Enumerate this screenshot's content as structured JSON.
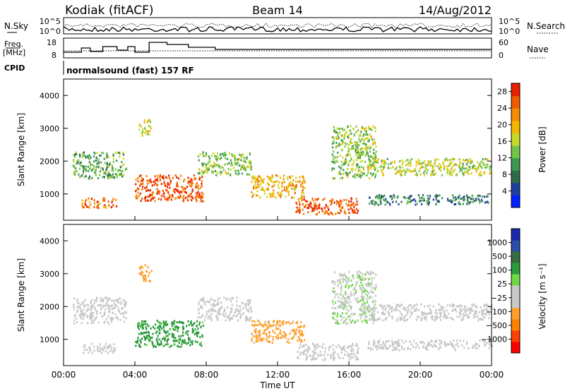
{
  "header": {
    "station": "Kodiak (fitACF)",
    "beam": "Beam 14",
    "date": "14/Aug/2012"
  },
  "top_panels": {
    "nsky_label": "N.Sky",
    "nsearch_label": "N.Search",
    "noise_ticks_left": [
      "10^5",
      "10^0"
    ],
    "noise_ticks_right": [
      "10^5",
      "10^0"
    ],
    "freq_label_1": "Freq.",
    "freq_label_2": "[MHz]",
    "freq_ticks": [
      "18",
      "8"
    ],
    "nave_label": "Nave",
    "nave_ticks": [
      "60",
      "0"
    ],
    "cpid_label": "CPID",
    "cpid_text": "normalsound (fast) 157 RF"
  },
  "colors": {
    "power_scale": [
      "#0020ff",
      "#1e3fa0",
      "#2e6b4a",
      "#3c9a50",
      "#72c34a",
      "#c8d828",
      "#f4b800",
      "#f68a00",
      "#f25a00",
      "#e82000"
    ],
    "velocity_scale": [
      "#ff0000",
      "#ff4000",
      "#ff8000",
      "#ff9f2a",
      "#c8c8c8",
      "#c8c8c8",
      "#6fd848",
      "#2a9a3a",
      "#356e3e",
      "#2a4fa8",
      "#1a2ab0"
    ]
  },
  "chart_data": [
    {
      "type": "heatmap",
      "panel": "power",
      "ylabel": "Slant Range [km]",
      "y_ticks": [
        "1000",
        "2000",
        "3000",
        "4000"
      ],
      "ylim": [
        200,
        4500
      ],
      "colorbar_label": "Power [dB]",
      "colorbar_ticks": [
        "4",
        "8",
        "12",
        "16",
        "20",
        "24",
        "28"
      ],
      "clim": [
        0,
        30
      ],
      "echo_regions": [
        {
          "t0": 0.5,
          "t1": 3.5,
          "r0": 1500,
          "r1": 2300,
          "value": 12
        },
        {
          "t0": 1.0,
          "t1": 3.0,
          "r0": 600,
          "r1": 900,
          "value": 24
        },
        {
          "t0": 4.0,
          "t1": 7.8,
          "r0": 800,
          "r1": 1600,
          "value": 26
        },
        {
          "t0": 4.2,
          "t1": 4.9,
          "r0": 2800,
          "r1": 3300,
          "value": 16
        },
        {
          "t0": 7.5,
          "t1": 10.5,
          "r0": 1600,
          "r1": 2300,
          "value": 14
        },
        {
          "t0": 10.5,
          "t1": 13.5,
          "r0": 900,
          "r1": 1600,
          "value": 20
        },
        {
          "t0": 13.0,
          "t1": 16.5,
          "r0": 400,
          "r1": 900,
          "value": 26
        },
        {
          "t0": 15.0,
          "t1": 17.5,
          "r0": 1500,
          "r1": 3100,
          "value": 14
        },
        {
          "t0": 17.0,
          "t1": 24.0,
          "r0": 1600,
          "r1": 2100,
          "value": 16
        },
        {
          "t0": 17.0,
          "t1": 24.0,
          "r0": 700,
          "r1": 1000,
          "value": 8
        }
      ]
    },
    {
      "type": "heatmap",
      "panel": "velocity",
      "ylabel": "Slant Range [km]",
      "y_ticks": [
        "1000",
        "2000",
        "3000",
        "4000"
      ],
      "ylim": [
        200,
        4500
      ],
      "colorbar_label": "Velocity [m s⁻¹]",
      "colorbar_ticks": [
        "1000",
        "500",
        "100",
        "25",
        "−25",
        "−100",
        "−500",
        "−1000"
      ],
      "clim": [
        -1000,
        1000
      ],
      "xlabel": "Time UT",
      "x_ticks": [
        "00:00",
        "04:00",
        "08:00",
        "12:00",
        "16:00",
        "20:00",
        "00:00"
      ],
      "xlim_hours": [
        0,
        24
      ],
      "echo_regions": [
        {
          "t0": 0.5,
          "t1": 3.5,
          "r0": 1500,
          "r1": 2300,
          "value": 0
        },
        {
          "t0": 1.0,
          "t1": 3.0,
          "r0": 600,
          "r1": 900,
          "value": 0
        },
        {
          "t0": 4.0,
          "t1": 7.8,
          "r0": 800,
          "r1": 1600,
          "value": 300
        },
        {
          "t0": 4.2,
          "t1": 4.9,
          "r0": 2800,
          "r1": 3300,
          "value": -300
        },
        {
          "t0": 7.5,
          "t1": 10.5,
          "r0": 1600,
          "r1": 2300,
          "value": -5
        },
        {
          "t0": 10.5,
          "t1": 13.5,
          "r0": 900,
          "r1": 1600,
          "value": -300
        },
        {
          "t0": 13.0,
          "t1": 16.5,
          "r0": 400,
          "r1": 900,
          "value": 0
        },
        {
          "t0": 15.0,
          "t1": 17.5,
          "r0": 1500,
          "r1": 3100,
          "value": 80
        },
        {
          "t0": 17.0,
          "t1": 24.0,
          "r0": 1600,
          "r1": 2100,
          "value": 0
        },
        {
          "t0": 17.0,
          "t1": 24.0,
          "r0": 700,
          "r1": 1000,
          "value": 0
        }
      ]
    }
  ]
}
